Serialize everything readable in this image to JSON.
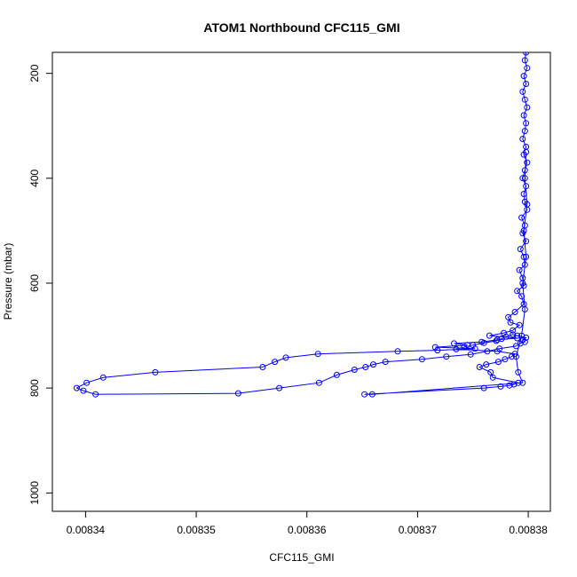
{
  "chart_data": {
    "type": "line",
    "title": "ATOM1 Northbound CFC115_GMI",
    "xlabel": "CFC115_GMI",
    "ylabel": "Pressure (mbar)",
    "xlim": [
      0.008337,
      0.008382
    ],
    "ylim": [
      1035,
      160
    ],
    "y_axis_reversed": true,
    "grid": false,
    "legend": "none",
    "color": "#0000ff",
    "marker": "open-circle",
    "x_ticks": [
      0.00834,
      0.00835,
      0.00836,
      0.00837,
      0.00838
    ],
    "x_tick_labels": [
      "0.00834",
      "0.00835",
      "0.00836",
      "0.00837",
      "0.00838"
    ],
    "y_ticks": [
      200,
      400,
      600,
      800,
      1000
    ],
    "y_tick_labels": [
      "200",
      "400",
      "600",
      "800",
      "1000"
    ],
    "series": [
      {
        "x": [
          0.0083798,
          0.0083797,
          0.0083799,
          0.0083796,
          0.0083798,
          0.0083795,
          0.0083797,
          0.0083799,
          0.0083796,
          0.0083798,
          0.0083797,
          0.0083795,
          0.0083798,
          0.0083796,
          0.0083799,
          0.0083797,
          0.0083795,
          0.0083798,
          0.0083796,
          0.0083797,
          0.0083799,
          0.0083794,
          0.0083797,
          0.0083795,
          0.0083798,
          0.0083793,
          0.0083796,
          0.0083797,
          0.0083792,
          0.0083795,
          0.0083796,
          0.008379,
          0.0083794,
          0.0083796,
          0.0083788,
          0.0083782,
          0.0083784,
          0.0083792,
          0.0083786,
          0.0083778,
          0.0083765,
          0.008379,
          0.0083772,
          0.0083758,
          0.0083733,
          0.0083745,
          0.0083716,
          0.0083752,
          0.0083718,
          0.0083682,
          0.008361,
          0.0083581,
          0.0083571,
          0.008356,
          0.0083463,
          0.0083416,
          0.0083401,
          0.0083392,
          0.0083398,
          0.0083409,
          0.0083538,
          0.0083575,
          0.0083611,
          0.0083627,
          0.0083643,
          0.0083653,
          0.008366,
          0.0083671,
          0.0083704,
          0.0083726,
          0.0083748,
          0.0083763,
          0.0083774,
          0.0083789,
          0.0083793,
          0.0083797,
          0.0083795,
          0.0083798,
          0.008379,
          0.0083786,
          0.008378,
          0.0083776,
          0.0083771,
          0.008376,
          0.008375,
          0.0083742,
          0.0083735,
          0.0083772,
          0.0083788,
          0.0083785,
          0.0083779,
          0.0083773,
          0.0083762,
          0.0083756,
          0.0083766,
          0.0083768,
          0.0083791,
          0.0083787,
          0.0083783,
          0.0083775,
          0.008376,
          0.0083652,
          0.0083659,
          0.0083795,
          0.0083791,
          0.0083789,
          0.0083794,
          0.0083797,
          0.0083795,
          0.0083798,
          0.0083796,
          0.0083799,
          0.0083797,
          0.0083798
        ],
        "y": [
          160,
          175,
          190,
          205,
          220,
          235,
          250,
          265,
          280,
          295,
          310,
          325,
          340,
          355,
          370,
          385,
          400,
          415,
          430,
          445,
          460,
          475,
          490,
          505,
          520,
          535,
          550,
          565,
          575,
          590,
          605,
          615,
          625,
          640,
          655,
          665,
          675,
          680,
          690,
          695,
          700,
          705,
          708,
          712,
          715,
          718,
          722,
          725,
          728,
          730,
          735,
          742,
          750,
          760,
          770,
          780,
          790,
          800,
          805,
          812,
          810,
          800,
          790,
          775,
          765,
          760,
          755,
          750,
          745,
          740,
          736,
          730,
          725,
          720,
          715,
          712,
          708,
          704,
          700,
          698,
          702,
          706,
          710,
          714,
          718,
          722,
          726,
          730,
          735,
          740,
          745,
          750,
          755,
          760,
          770,
          780,
          790,
          793,
          795,
          797,
          800,
          812,
          812,
          790,
          770,
          740,
          700,
          650,
          600,
          550,
          500,
          450,
          400,
          350
        ]
      }
    ]
  }
}
